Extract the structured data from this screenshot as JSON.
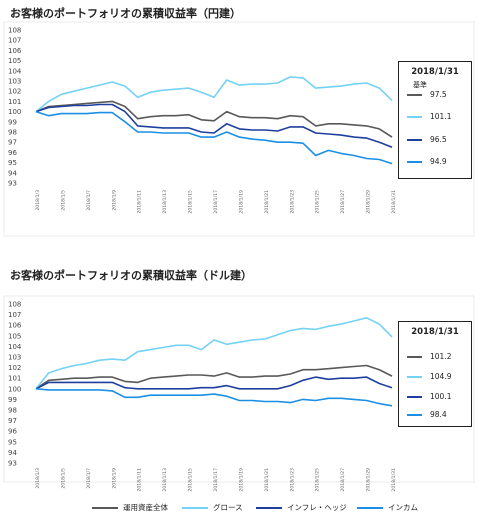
{
  "chart_data": [
    {
      "type": "line",
      "title": "お客様のポートフォリオの累積収益率（円建）",
      "xlabel": "",
      "ylabel": "",
      "ylim": [
        93,
        108
      ],
      "yticks": [
        93,
        94,
        95,
        96,
        97,
        98,
        99,
        100,
        101,
        102,
        103,
        104,
        105,
        106,
        107,
        108
      ],
      "x": [
        "2018/1/3",
        "2018/1/4",
        "2018/1/5",
        "2018/1/6",
        "2018/1/7",
        "2018/1/8",
        "2018/1/9",
        "2018/1/10",
        "2018/1/11",
        "2018/1/12",
        "2018/1/13",
        "2018/1/14",
        "2018/1/15",
        "2018/1/16",
        "2018/1/17",
        "2018/1/18",
        "2018/1/19",
        "2018/1/20",
        "2018/1/21",
        "2018/1/22",
        "2018/1/23",
        "2018/1/24",
        "2018/1/25",
        "2018/1/26",
        "2018/1/27",
        "2018/1/28",
        "2018/1/29",
        "2018/1/30",
        "2018/1/31"
      ],
      "xticklabels": [
        "2018/1/3",
        "2018/1/5",
        "2018/1/7",
        "2018/1/9",
        "2018/1/11",
        "2018/1/13",
        "2018/1/15",
        "2018/1/17",
        "2018/1/19",
        "2018/1/21",
        "2018/1/23",
        "2018/1/25",
        "2018/1/27",
        "2018/1/29",
        "2018/1/31"
      ],
      "grid": false,
      "series": [
        {
          "name": "運用資産全体",
          "color": "#595959",
          "values": [
            100.0,
            100.5,
            100.6,
            100.7,
            100.8,
            100.9,
            101.0,
            100.5,
            99.3,
            99.5,
            99.6,
            99.6,
            99.7,
            99.2,
            99.1,
            100.0,
            99.5,
            99.4,
            99.4,
            99.3,
            99.6,
            99.5,
            98.6,
            98.8,
            98.8,
            98.7,
            98.6,
            98.3,
            97.5
          ]
        },
        {
          "name": "グロース",
          "color": "#74d2f4",
          "values": [
            100.0,
            101.0,
            101.7,
            102.0,
            102.3,
            102.6,
            102.9,
            102.5,
            101.4,
            101.9,
            102.1,
            102.2,
            102.3,
            101.9,
            101.4,
            103.1,
            102.6,
            102.7,
            102.7,
            102.8,
            103.4,
            103.3,
            102.3,
            102.4,
            102.5,
            102.7,
            102.8,
            102.3,
            101.1
          ]
        },
        {
          "name": "インフレ・ヘッジ",
          "color": "#1f3f9e",
          "values": [
            100.0,
            100.4,
            100.5,
            100.6,
            100.6,
            100.7,
            100.7,
            100.0,
            98.6,
            98.5,
            98.4,
            98.4,
            98.4,
            98.0,
            97.9,
            98.8,
            98.3,
            98.2,
            98.2,
            98.1,
            98.5,
            98.5,
            97.9,
            97.8,
            97.7,
            97.5,
            97.4,
            97.0,
            96.5
          ]
        },
        {
          "name": "インカム",
          "color": "#1b8fe6",
          "values": [
            100.0,
            99.6,
            99.8,
            99.8,
            99.8,
            99.9,
            99.9,
            99.0,
            98.0,
            98.0,
            97.9,
            97.9,
            97.9,
            97.5,
            97.5,
            98.0,
            97.5,
            97.3,
            97.2,
            97.0,
            97.0,
            96.9,
            95.7,
            96.2,
            95.9,
            95.7,
            95.4,
            95.3,
            94.9
          ]
        }
      ],
      "box": {
        "title": "2018/1/31",
        "subtitle": "基準",
        "values": [
          "97.5",
          "101.1",
          "96.5",
          "94.9"
        ]
      }
    },
    {
      "type": "line",
      "title": "お客様のポートフォリオの累積収益率（ドル建）",
      "xlabel": "",
      "ylabel": "",
      "ylim": [
        93,
        108
      ],
      "yticks": [
        93,
        94,
        95,
        96,
        97,
        98,
        99,
        100,
        101,
        102,
        103,
        104,
        105,
        106,
        107,
        108
      ],
      "x": [
        "2018/1/3",
        "2018/1/4",
        "2018/1/5",
        "2018/1/6",
        "2018/1/7",
        "2018/1/8",
        "2018/1/9",
        "2018/1/10",
        "2018/1/11",
        "2018/1/12",
        "2018/1/13",
        "2018/1/14",
        "2018/1/15",
        "2018/1/16",
        "2018/1/17",
        "2018/1/18",
        "2018/1/19",
        "2018/1/20",
        "2018/1/21",
        "2018/1/22",
        "2018/1/23",
        "2018/1/24",
        "2018/1/25",
        "2018/1/26",
        "2018/1/27",
        "2018/1/28",
        "2018/1/29",
        "2018/1/30",
        "2018/1/31"
      ],
      "xticklabels": [
        "2018/1/3",
        "2018/1/5",
        "2018/1/7",
        "2018/1/9",
        "2018/1/11",
        "2018/1/13",
        "2018/1/15",
        "2018/1/17",
        "2018/1/19",
        "2018/1/21",
        "2018/1/23",
        "2018/1/25",
        "2018/1/27",
        "2018/1/29",
        "2018/1/31"
      ],
      "grid": false,
      "series": [
        {
          "name": "運用資産全体",
          "color": "#595959",
          "values": [
            100.0,
            100.8,
            100.9,
            101.0,
            101.0,
            101.1,
            101.1,
            100.7,
            100.6,
            101.0,
            101.1,
            101.2,
            101.3,
            101.3,
            101.2,
            101.5,
            101.1,
            101.1,
            101.2,
            101.2,
            101.4,
            101.8,
            101.8,
            101.9,
            102.0,
            102.1,
            102.2,
            101.8,
            101.2
          ]
        },
        {
          "name": "グロース",
          "color": "#74d2f4",
          "values": [
            100.0,
            101.5,
            101.9,
            102.2,
            102.4,
            102.7,
            102.8,
            102.7,
            103.5,
            103.7,
            103.9,
            104.1,
            104.1,
            103.7,
            104.6,
            104.2,
            104.4,
            104.6,
            104.7,
            105.1,
            105.5,
            105.7,
            105.6,
            105.9,
            106.1,
            106.4,
            106.7,
            106.1,
            104.9
          ]
        },
        {
          "name": "インフレ・ヘッジ",
          "color": "#1f3f9e",
          "values": [
            100.0,
            100.6,
            100.6,
            100.6,
            100.6,
            100.6,
            100.6,
            100.1,
            100.0,
            100.0,
            100.0,
            100.0,
            100.0,
            100.1,
            100.1,
            100.3,
            100.0,
            100.0,
            100.0,
            100.0,
            100.3,
            100.8,
            101.1,
            100.9,
            101.0,
            101.0,
            101.1,
            100.5,
            100.1
          ]
        },
        {
          "name": "インカム",
          "color": "#1b8fe6",
          "values": [
            100.0,
            99.9,
            99.9,
            99.9,
            99.9,
            99.9,
            99.8,
            99.2,
            99.2,
            99.4,
            99.4,
            99.4,
            99.4,
            99.4,
            99.5,
            99.3,
            98.9,
            98.9,
            98.8,
            98.8,
            98.7,
            99.0,
            98.9,
            99.1,
            99.1,
            99.0,
            98.9,
            98.6,
            98.4
          ]
        }
      ],
      "box": {
        "title": "2018/1/31",
        "subtitle": "",
        "values": [
          "101.2",
          "104.9",
          "100.1",
          "98.4"
        ]
      }
    }
  ],
  "legend": {
    "items": [
      {
        "label": "運用資産全体",
        "color": "#595959"
      },
      {
        "label": "グロース",
        "color": "#74d2f4"
      },
      {
        "label": "インフレ・ヘッジ",
        "color": "#1f3f9e"
      },
      {
        "label": "インカム",
        "color": "#1b8fe6"
      }
    ]
  }
}
